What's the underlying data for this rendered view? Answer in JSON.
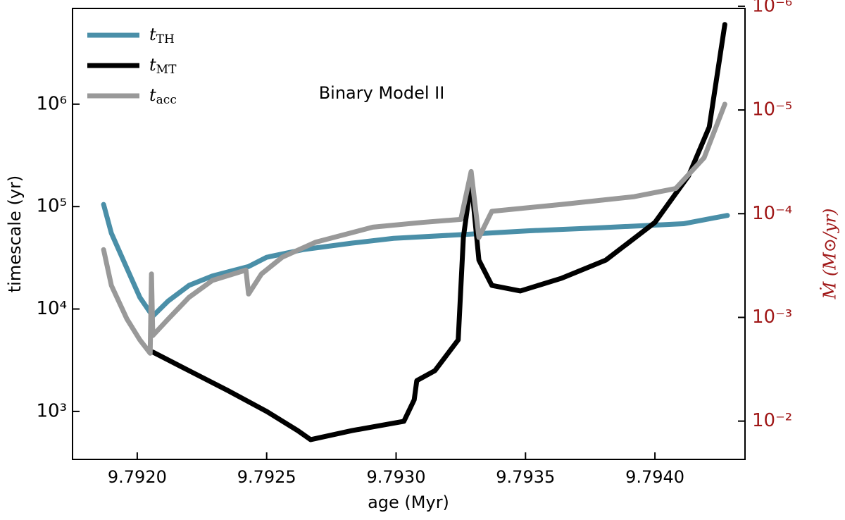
{
  "chart_data": {
    "type": "line",
    "annotation": "Binary Model II",
    "x_label": "age (Myr)",
    "y_label": "timescale (yr)",
    "y2_label": "Ṁ (M⊙/yr)",
    "y2_color": "#a01818",
    "log_y": true,
    "log_y2": true,
    "legend": "upper left",
    "xlim": [
      9.79175,
      9.794348
    ],
    "xticks": [
      {
        "value": 9.792,
        "label": "9.7920"
      },
      {
        "value": 9.7925,
        "label": "9.7925"
      },
      {
        "value": 9.793,
        "label": "9.7930"
      },
      {
        "value": 9.7935,
        "label": "9.7935"
      },
      {
        "value": 9.794,
        "label": "9.7940"
      }
    ],
    "ylim": [
      340,
      8600000
    ],
    "yticks": [
      {
        "value": 1000,
        "label": "10³"
      },
      {
        "value": 10000,
        "label": "10⁴"
      },
      {
        "value": 100000,
        "label": "10⁵"
      },
      {
        "value": 1000000,
        "label": "10⁶"
      }
    ],
    "y2lim": [
      0.0234,
      1.05e-06
    ],
    "y2ticks": [
      {
        "value": 0.01,
        "label": "10⁻²"
      },
      {
        "value": 0.001,
        "label": "10⁻³"
      },
      {
        "value": 0.0001,
        "label": "10⁻⁴"
      },
      {
        "value": 1e-05,
        "label": "10⁻⁵"
      },
      {
        "value": 1e-06,
        "label": "10⁻⁶"
      }
    ],
    "series": [
      {
        "name": "tTH",
        "color": "#4a8fa8",
        "x": [
          9.79187,
          9.7919,
          9.79196,
          9.79201,
          9.79206,
          9.79212,
          9.7922,
          9.79229,
          9.79243,
          9.7925,
          9.79264,
          9.79283,
          9.79299,
          9.79324,
          9.79351,
          9.79378,
          9.79411,
          9.79428
        ],
        "values": [
          105000,
          55000,
          25000,
          13000,
          8500,
          12000,
          17000,
          21000,
          26000,
          32000,
          38000,
          44000,
          49000,
          53000,
          58000,
          62000,
          68000,
          82000
        ]
      },
      {
        "name": "tMT",
        "color": "#000000",
        "x": [
          9.79206,
          9.7922,
          9.79235,
          9.7925,
          9.79262,
          9.79267,
          9.79283,
          9.79303,
          9.79307,
          9.79308,
          9.79315,
          9.79324,
          9.79326,
          9.79329,
          9.79332,
          9.79337,
          9.79348,
          9.79364,
          9.79381,
          9.794,
          9.79413,
          9.79421,
          9.79427
        ],
        "values": [
          3800,
          2500,
          1600,
          1000,
          650,
          530,
          650,
          800,
          1300,
          2000,
          2500,
          5000,
          50000,
          180000,
          30000,
          17000,
          15000,
          20000,
          30000,
          70000,
          200000,
          600000,
          6000000
        ]
      },
      {
        "name": "tacc",
        "color": "#999999",
        "x": [
          9.79187,
          9.7919,
          9.79196,
          9.79201,
          9.79205,
          9.792055,
          9.79206,
          9.79212,
          9.7922,
          9.79229,
          9.79242,
          9.79243,
          9.79248,
          9.79256,
          9.79269,
          9.79291,
          9.7931,
          9.79325,
          9.79329,
          9.79332,
          9.79337,
          9.79364,
          9.79392,
          9.79408,
          9.79419,
          9.79427
        ],
        "values": [
          38000,
          17000,
          8000,
          5000,
          3700,
          22000,
          5500,
          8000,
          13000,
          19000,
          24000,
          14000,
          22000,
          32000,
          45000,
          63000,
          70000,
          75000,
          220000,
          50000,
          90000,
          105000,
          125000,
          150000,
          300000,
          1000000
        ]
      }
    ]
  }
}
